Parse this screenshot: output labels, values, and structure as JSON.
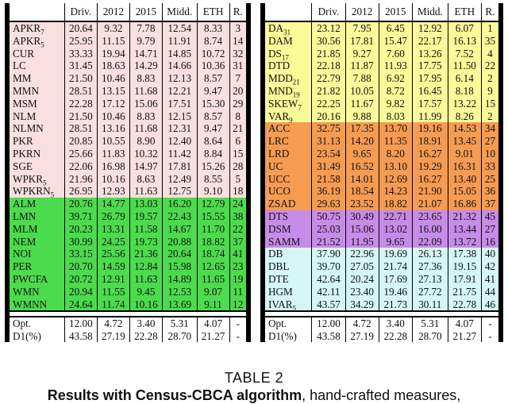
{
  "headers": [
    "Driv.",
    "2012",
    "2015",
    "Midd.",
    "ETH",
    "R."
  ],
  "colors": {
    "pink": "#f9dfdf",
    "green": "#4cdb4c",
    "yellow": "#fafa99",
    "orange": "#f59b52",
    "purple": "#c78be8",
    "cyan": "#d6f5f5"
  },
  "left_rows": [
    {
      "name": "APKR",
      "sub": "7",
      "vals": [
        "20.64",
        "9.32",
        "7.78",
        "12.54",
        "8.33",
        "3"
      ],
      "group": "pink"
    },
    {
      "name": "APKR",
      "sub": "5",
      "vals": [
        "25.95",
        "11.15",
        "9.79",
        "11.91",
        "8.74",
        "14"
      ],
      "group": "pink"
    },
    {
      "name": "CUR",
      "sub": "",
      "vals": [
        "33.33",
        "19.94",
        "14.71",
        "14.85",
        "10.72",
        "32"
      ],
      "group": "pink"
    },
    {
      "name": "LC",
      "sub": "",
      "vals": [
        "31.45",
        "18.63",
        "14.29",
        "14.66",
        "10.36",
        "31"
      ],
      "group": "pink"
    },
    {
      "name": "MM",
      "sub": "",
      "vals": [
        "21.50",
        "10.46",
        "8.83",
        "12.13",
        "8.57",
        "7"
      ],
      "group": "pink"
    },
    {
      "name": "MMN",
      "sub": "",
      "vals": [
        "28.51",
        "13.15",
        "11.68",
        "12.21",
        "9.47",
        "20"
      ],
      "group": "pink"
    },
    {
      "name": "MSM",
      "sub": "",
      "vals": [
        "22.28",
        "17.12",
        "15.06",
        "17.51",
        "15.30",
        "29"
      ],
      "group": "pink"
    },
    {
      "name": "NLM",
      "sub": "",
      "vals": [
        "21.50",
        "10.46",
        "8.83",
        "12.15",
        "8.57",
        "8"
      ],
      "group": "pink"
    },
    {
      "name": "NLMN",
      "sub": "",
      "vals": [
        "28.51",
        "13.16",
        "11.68",
        "12.31",
        "9.47",
        "21"
      ],
      "group": "pink"
    },
    {
      "name": "PKR",
      "sub": "",
      "vals": [
        "20.85",
        "10.55",
        "8.90",
        "12.40",
        "8.64",
        "6"
      ],
      "group": "pink"
    },
    {
      "name": "PKRN",
      "sub": "",
      "vals": [
        "25.66",
        "11.83",
        "10.32",
        "11.42",
        "8.84",
        "15"
      ],
      "group": "pink"
    },
    {
      "name": "SGE",
      "sub": "",
      "vals": [
        "22.06",
        "16.98",
        "14.97",
        "17.81",
        "15.26",
        "28"
      ],
      "group": "pink"
    },
    {
      "name": "WPKR",
      "sub": "5",
      "vals": [
        "21.96",
        "10.16",
        "8.63",
        "12.49",
        "8.55",
        "5"
      ],
      "group": "pink"
    },
    {
      "name": "WPKRN",
      "sub": "5",
      "vals": [
        "26.95",
        "12.93",
        "11.63",
        "12.75",
        "9.10",
        "18"
      ],
      "group": "pink"
    },
    {
      "name": "ALM",
      "sub": "",
      "vals": [
        "20.76",
        "14.77",
        "13.03",
        "16.20",
        "12.79",
        "24"
      ],
      "group": "green"
    },
    {
      "name": "LMN",
      "sub": "",
      "vals": [
        "39.71",
        "26.79",
        "19.57",
        "22.43",
        "15.55",
        "38"
      ],
      "group": "green"
    },
    {
      "name": "MLM",
      "sub": "",
      "vals": [
        "20.23",
        "13.31",
        "11.58",
        "14.67",
        "11.70",
        "22"
      ],
      "group": "green"
    },
    {
      "name": "NEM",
      "sub": "",
      "vals": [
        "30.99",
        "24.25",
        "19.73",
        "20.88",
        "18.82",
        "37"
      ],
      "group": "green"
    },
    {
      "name": "NOI",
      "sub": "",
      "vals": [
        "33.15",
        "25.56",
        "21.36",
        "20.64",
        "18.74",
        "41"
      ],
      "group": "green"
    },
    {
      "name": "PER",
      "sub": "",
      "vals": [
        "20.70",
        "14.59",
        "12.84",
        "15.98",
        "12.65",
        "23"
      ],
      "group": "green"
    },
    {
      "name": "PWCFA",
      "sub": "",
      "vals": [
        "20.72",
        "12.91",
        "11.63",
        "14.89",
        "11.65",
        "19"
      ],
      "group": "green"
    },
    {
      "name": "WMN",
      "sub": "",
      "vals": [
        "20.94",
        "11.55",
        "9.45",
        "12.53",
        "9.07",
        "11"
      ],
      "group": "green"
    },
    {
      "name": "WMNN",
      "sub": "",
      "vals": [
        "24.64",
        "11.74",
        "10.16",
        "13.69",
        "9.11",
        "12"
      ],
      "group": "green"
    }
  ],
  "right_rows": [
    {
      "name": "DA",
      "sub": "31",
      "vals": [
        "23.12",
        "7.95",
        "6.45",
        "12.92",
        "6.07",
        "1"
      ],
      "group": "yellow"
    },
    {
      "name": "DAM",
      "sub": "",
      "vals": [
        "30.56",
        "17.81",
        "15.47",
        "22.17",
        "16.13",
        "35"
      ],
      "group": "yellow"
    },
    {
      "name": "DS",
      "sub": "17",
      "vals": [
        "21.85",
        "9.27",
        "7.60",
        "13.26",
        "7.52",
        "4"
      ],
      "group": "yellow"
    },
    {
      "name": "DTD",
      "sub": "",
      "vals": [
        "22.18",
        "11.87",
        "11.93",
        "17.75",
        "11.50",
        "22"
      ],
      "group": "yellow"
    },
    {
      "name": "MDD",
      "sub": "21",
      "vals": [
        "22.79",
        "7.88",
        "6.92",
        "17.95",
        "6.14",
        "2"
      ],
      "group": "yellow"
    },
    {
      "name": "MND",
      "sub": "19",
      "vals": [
        "21.82",
        "10.05",
        "8.72",
        "16.45",
        "8.18",
        "9"
      ],
      "group": "yellow"
    },
    {
      "name": "SKEW",
      "sub": "7",
      "vals": [
        "22.25",
        "11.67",
        "9.82",
        "17.57",
        "13.22",
        "15"
      ],
      "group": "yellow"
    },
    {
      "name": "VAR",
      "sub": "9",
      "vals": [
        "20.16",
        "9.88",
        "8.03",
        "11.99",
        "8.26",
        "2"
      ],
      "group": "yellow"
    },
    {
      "name": "ACC",
      "sub": "",
      "vals": [
        "32.75",
        "17.35",
        "13.70",
        "19.16",
        "14.53",
        "34"
      ],
      "group": "orange"
    },
    {
      "name": "LRC",
      "sub": "",
      "vals": [
        "31.13",
        "14.20",
        "11.35",
        "18.91",
        "13.45",
        "27"
      ],
      "group": "orange"
    },
    {
      "name": "LRD",
      "sub": "",
      "vals": [
        "23.54",
        "9.65",
        "8.20",
        "16.27",
        "9.01",
        "10"
      ],
      "group": "orange"
    },
    {
      "name": "UC",
      "sub": "",
      "vals": [
        "31.49",
        "16.52",
        "13.10",
        "19.29",
        "16.31",
        "33"
      ],
      "group": "orange"
    },
    {
      "name": "UCC",
      "sub": "",
      "vals": [
        "21.58",
        "14.01",
        "12.69",
        "16.27",
        "13.40",
        "25"
      ],
      "group": "orange"
    },
    {
      "name": "UCO",
      "sub": "",
      "vals": [
        "36.19",
        "18.54",
        "14.23",
        "21.90",
        "15.05",
        "36"
      ],
      "group": "orange"
    },
    {
      "name": "ZSAD",
      "sub": "",
      "vals": [
        "29.63",
        "23.52",
        "18.82",
        "21.07",
        "16.86",
        "37"
      ],
      "group": "orange"
    },
    {
      "name": "DTS",
      "sub": "",
      "vals": [
        "50.75",
        "30.49",
        "22.71",
        "23.65",
        "21.32",
        "45"
      ],
      "group": "purple"
    },
    {
      "name": "DSM",
      "sub": "",
      "vals": [
        "25.03",
        "15.06",
        "13.02",
        "16.00",
        "13.44",
        "27"
      ],
      "group": "purple"
    },
    {
      "name": "SAMM",
      "sub": "",
      "vals": [
        "21.52",
        "11.95",
        "9.65",
        "22.09",
        "13.72",
        "16"
      ],
      "group": "purple"
    },
    {
      "name": "DB",
      "sub": "",
      "vals": [
        "37.90",
        "22.96",
        "19.69",
        "26.13",
        "17.38",
        "40"
      ],
      "group": "cyan"
    },
    {
      "name": "DBL",
      "sub": "",
      "vals": [
        "39.70",
        "27.05",
        "21.74",
        "27.36",
        "19.15",
        "42"
      ],
      "group": "cyan"
    },
    {
      "name": "DTE",
      "sub": "",
      "vals": [
        "42.64",
        "20.24",
        "17.69",
        "27.13",
        "17.91",
        "41"
      ],
      "group": "cyan"
    },
    {
      "name": "HGM",
      "sub": "",
      "vals": [
        "42.11",
        "23.40",
        "19.46",
        "27.72",
        "21.75",
        "44"
      ],
      "group": "cyan"
    },
    {
      "name": "IVAR",
      "sub": "5",
      "vals": [
        "43.57",
        "34.29",
        "21.73",
        "30.11",
        "22.78",
        "46"
      ],
      "group": "cyan"
    }
  ],
  "footer_rows": [
    {
      "name": "Opt.",
      "vals": [
        "12.00",
        "4.72",
        "3.40",
        "5.31",
        "4.07",
        "-"
      ]
    },
    {
      "name": "D1(%)",
      "vals": [
        "43.58",
        "27.19",
        "22.28",
        "28.70",
        "21.27",
        "-"
      ]
    }
  ],
  "caption_line1": "TABLE 2",
  "caption_bold": "Results with Census-CBCA algorithm",
  "caption_rest": ", hand-crafted measures,"
}
